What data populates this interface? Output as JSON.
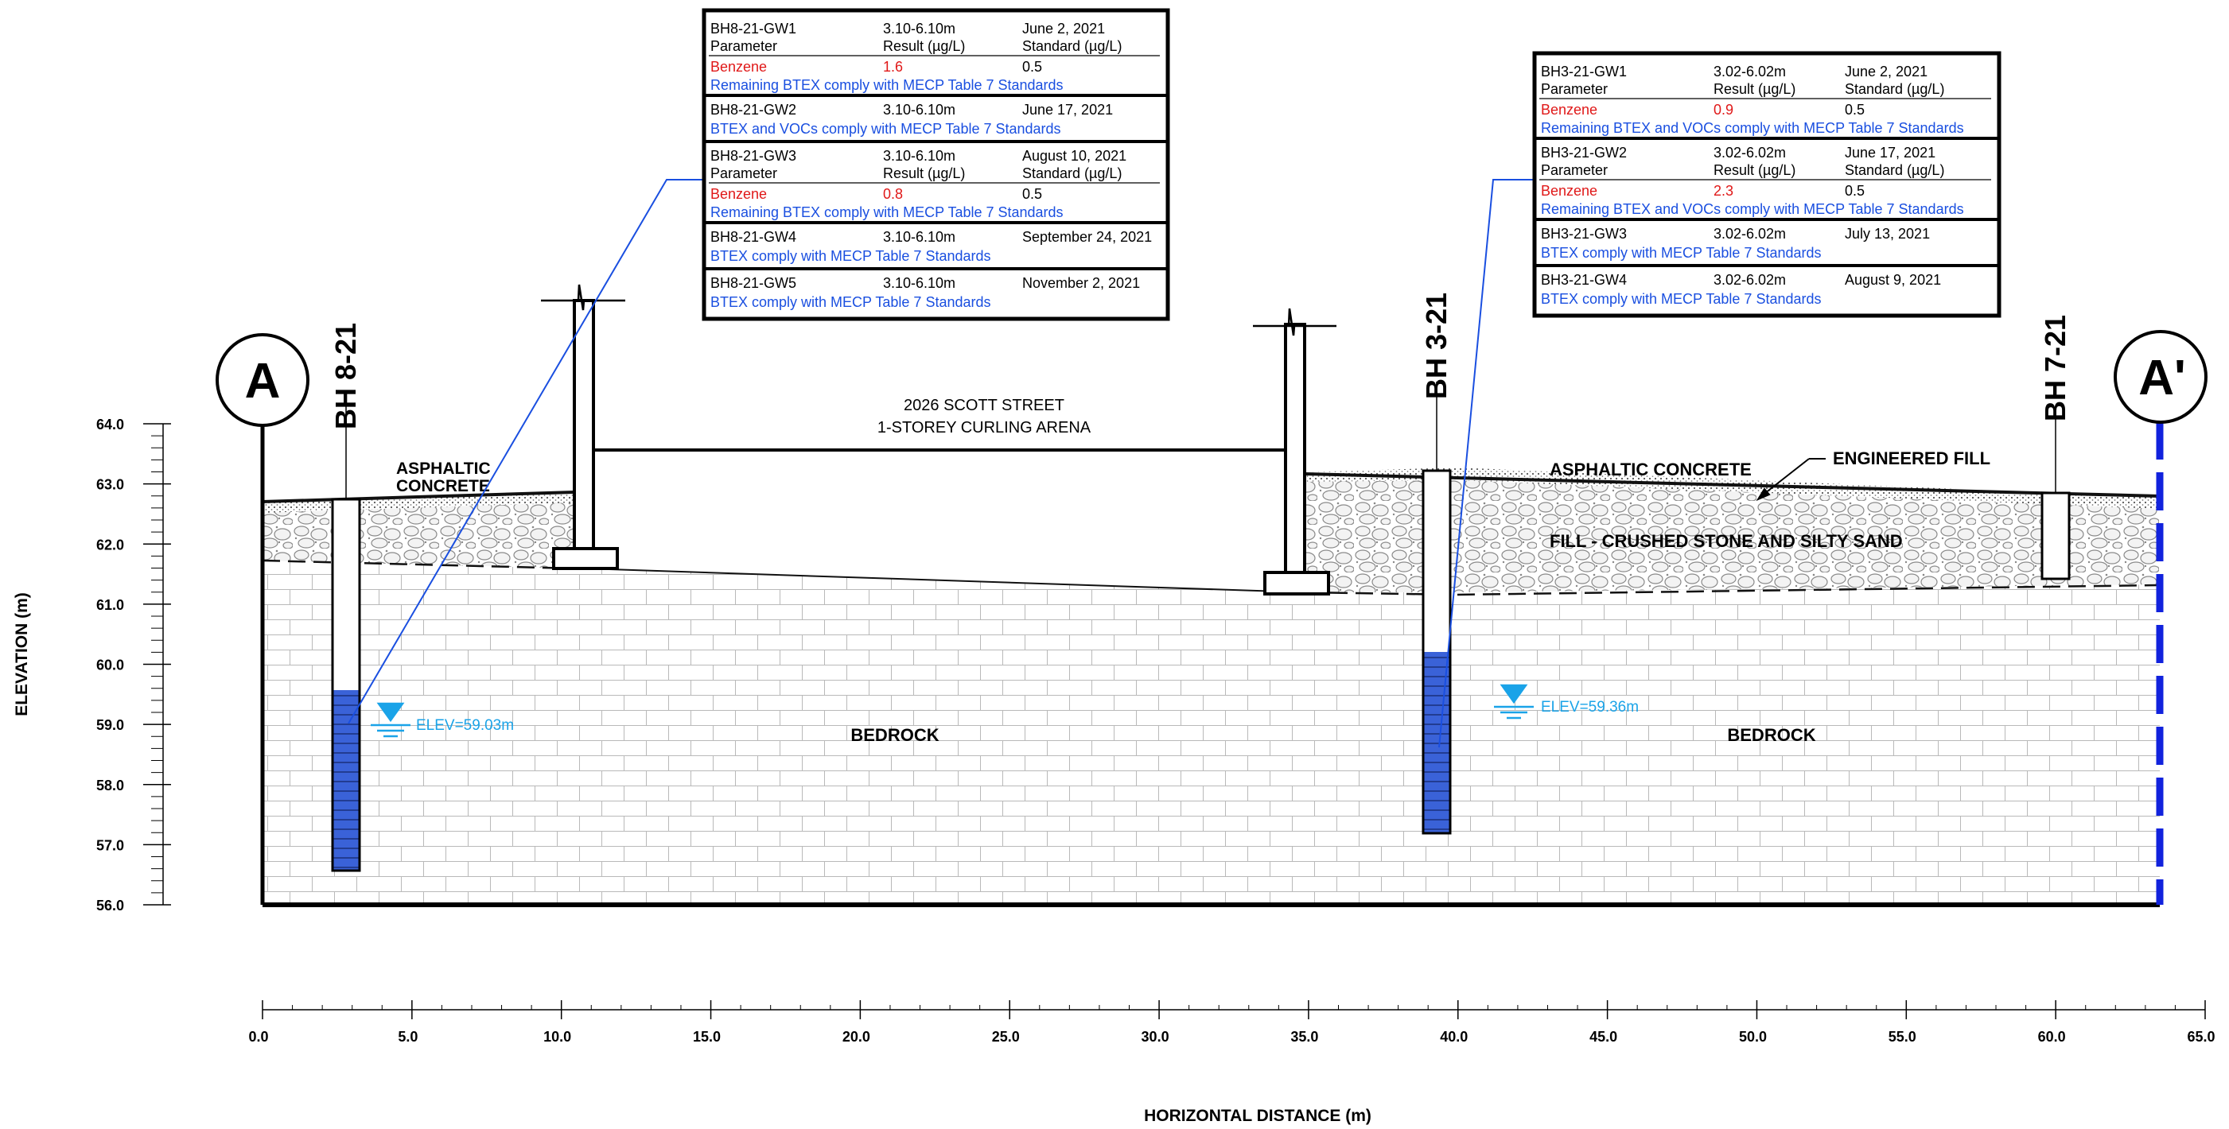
{
  "markers": {
    "left": "A",
    "right": "A'"
  },
  "axes": {
    "y_title": "ELEVATION (m)",
    "x_title": "HORIZONTAL DISTANCE (m)",
    "y_ticks": [
      "64.0",
      "63.0",
      "62.0",
      "61.0",
      "60.0",
      "59.0",
      "58.0",
      "57.0",
      "56.0"
    ],
    "x_ticks": [
      "0.0",
      "5.0",
      "10.0",
      "15.0",
      "20.0",
      "25.0",
      "30.0",
      "35.0",
      "40.0",
      "45.0",
      "50.0",
      "55.0",
      "60.0",
      "65.0"
    ]
  },
  "boreholes": [
    {
      "id": "bh8",
      "label": "BH 8-21",
      "water": "ELEV=59.03m"
    },
    {
      "id": "bh3",
      "label": "BH 3-21",
      "water": "ELEV=59.36m"
    },
    {
      "id": "bh7",
      "label": "BH 7-21"
    }
  ],
  "building": {
    "line1": "2026 SCOTT STREET",
    "line2": "1-STOREY CURLING ARENA"
  },
  "layers": {
    "asphalt_left": [
      "ASPHALTIC",
      "CONCRETE"
    ],
    "asphalt_right": "ASPHALTIC CONCRETE",
    "engineered_fill": "ENGINEERED FILL",
    "fill": "FILL - CRUSHED STONE AND SILTY SAND",
    "bedrock_left": "BEDROCK",
    "bedrock_right": "BEDROCK"
  },
  "tables": {
    "bh8": [
      {
        "id": "BH8-21-GW1",
        "depth": "3.10-6.10m",
        "date": "June 2, 2021",
        "has_params": true,
        "param_h": "Parameter",
        "result_h": "Result (µg/L)",
        "std_h": "Standard (µg/L)",
        "param": "Benzene",
        "result": "1.6",
        "std": "0.5",
        "note": "Remaining BTEX comply with MECP Table 7 Standards"
      },
      {
        "id": "BH8-21-GW2",
        "depth": "3.10-6.10m",
        "date": "June 17, 2021",
        "has_params": false,
        "note": "BTEX and VOCs comply with MECP Table 7 Standards"
      },
      {
        "id": "BH8-21-GW3",
        "depth": "3.10-6.10m",
        "date": "August 10, 2021",
        "has_params": true,
        "param_h": "Parameter",
        "result_h": "Result (µg/L)",
        "std_h": "Standard (µg/L)",
        "param": "Benzene",
        "result": "0.8",
        "std": "0.5",
        "note": "Remaining BTEX comply with MECP Table 7 Standards"
      },
      {
        "id": "BH8-21-GW4",
        "depth": "3.10-6.10m",
        "date": "September 24, 2021",
        "has_params": false,
        "note": "BTEX comply with MECP Table 7 Standards"
      },
      {
        "id": "BH8-21-GW5",
        "depth": "3.10-6.10m",
        "date": "November 2, 2021",
        "has_params": false,
        "note": "BTEX comply with MECP Table 7 Standards"
      }
    ],
    "bh3": [
      {
        "id": "BH3-21-GW1",
        "depth": "3.02-6.02m",
        "date": "June 2, 2021",
        "has_params": true,
        "param_h": "Parameter",
        "result_h": "Result (µg/L)",
        "std_h": "Standard (µg/L)",
        "param": "Benzene",
        "result": "0.9",
        "std": "0.5",
        "note": "Remaining BTEX and VOCs comply with MECP Table 7 Standards"
      },
      {
        "id": "BH3-21-GW2",
        "depth": "3.02-6.02m",
        "date": "June 17, 2021",
        "has_params": true,
        "param_h": "Parameter",
        "result_h": "Result (µg/L)",
        "std_h": "Standard (µg/L)",
        "param": "Benzene",
        "result": "2.3",
        "std": "0.5",
        "note": "Remaining BTEX and VOCs comply with MECP Table 7 Standards"
      },
      {
        "id": "BH3-21-GW3",
        "depth": "3.02-6.02m",
        "date": "July 13, 2021",
        "has_params": false,
        "note": "BTEX comply with MECP Table 7 Standards"
      },
      {
        "id": "BH3-21-GW4",
        "depth": "3.02-6.02m",
        "date": "August 9, 2021",
        "has_params": false,
        "note": "BTEX comply with MECP Table 7 Standards"
      }
    ]
  },
  "colors": {
    "note_blue": "#1a4fe0",
    "exceed_red": "#e01818",
    "water_blue": "#1aa3e8",
    "screen_blue": "#3a62d8"
  }
}
